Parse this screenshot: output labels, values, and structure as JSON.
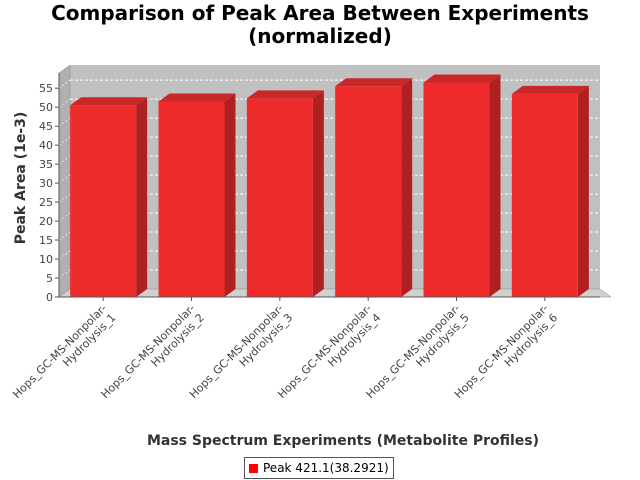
{
  "chart_data": {
    "type": "bar",
    "title": "Comparison of Peak Area Between Experiments (normalized)",
    "title_lines": [
      "Comparison of Peak Area Between Experiments",
      "(normalized)"
    ],
    "xlabel": "Mass Spectrum Experiments (Metabolite Profiles)",
    "ylabel": "Peak Area (1e-3)",
    "ylim": [
      0,
      59
    ],
    "yticks": [
      0,
      5,
      10,
      15,
      20,
      25,
      30,
      35,
      40,
      45,
      50,
      55
    ],
    "categories": [
      [
        "Hops_GC-MS-Nonpolar-",
        "Hydrolysis_1"
      ],
      [
        "Hops_GC-MS-Nonpolar-",
        "Hydrolysis_2"
      ],
      [
        "Hops_GC-MS-Nonpolar-",
        "Hydrolysis_3"
      ],
      [
        "Hops_GC-MS-Nonpolar-",
        "Hydrolysis_4"
      ],
      [
        "Hops_GC-MS-Nonpolar-",
        "Hydrolysis_5"
      ],
      [
        "Hops_GC-MS-Nonpolar-",
        "Hydrolysis_6"
      ]
    ],
    "series": [
      {
        "name": "Peak 421.1(38.2921)",
        "color": "#ff0000",
        "values": [
          50.5,
          51.5,
          52.3,
          55.5,
          56.5,
          53.5
        ]
      }
    ],
    "grid": true,
    "legend_position": "bottom",
    "style": "3d-bar"
  }
}
